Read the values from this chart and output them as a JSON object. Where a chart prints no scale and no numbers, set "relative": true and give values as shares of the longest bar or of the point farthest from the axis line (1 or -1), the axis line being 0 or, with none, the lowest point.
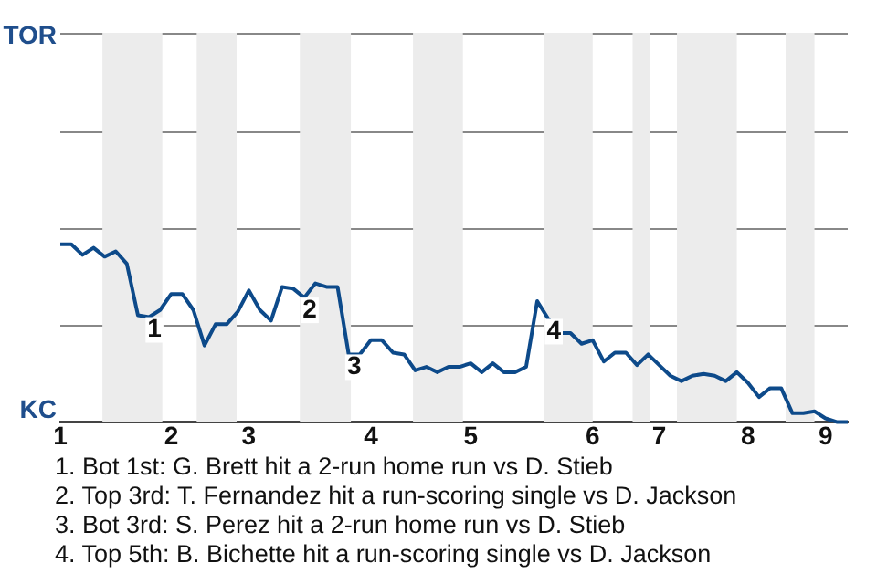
{
  "chart_data": {
    "type": "line",
    "color": "#0d4a8a",
    "marker": "none",
    "line_style": "solid",
    "legend": false,
    "ref_lines": [
      {
        "axis": "y",
        "value": 0.55,
        "color": "#888888"
      },
      {
        "axis": "y",
        "value": 1.09,
        "color": "#888888"
      },
      {
        "axis": "y",
        "value": 1.64,
        "color": "#888888"
      },
      {
        "axis": "y",
        "value": 2.19,
        "color": "#888888"
      }
    ],
    "categories": [
      "1",
      null,
      null,
      null,
      null,
      null,
      null,
      null,
      null,
      null,
      "2",
      null,
      null,
      null,
      null,
      null,
      null,
      "3",
      null,
      null,
      null,
      null,
      null,
      null,
      null,
      null,
      null,
      null,
      "4",
      null,
      null,
      null,
      null,
      null,
      null,
      null,
      null,
      "5",
      null,
      null,
      null,
      null,
      null,
      null,
      null,
      null,
      null,
      null,
      "6",
      null,
      null,
      null,
      null,
      null,
      "7",
      null,
      null,
      null,
      null,
      null,
      null,
      null,
      "8",
      null,
      null,
      null,
      null,
      null,
      null,
      "9",
      null,
      null
    ],
    "relative": true,
    "values": [
      1,
      1,
      0.94,
      0.98,
      0.93,
      0.96,
      0.89,
      0.6,
      0.59,
      0.63,
      0.72,
      0.72,
      0.63,
      0.43,
      0.55,
      0.55,
      0.62,
      0.74,
      0.63,
      0.57,
      0.76,
      0.75,
      0.7,
      0.78,
      0.76,
      0.76,
      0.38,
      0.38,
      0.46,
      0.46,
      0.39,
      0.38,
      0.29,
      0.31,
      0.28,
      0.31,
      0.31,
      0.33,
      0.28,
      0.33,
      0.28,
      0.28,
      0.31,
      0.68,
      0.58,
      0.5,
      0.5,
      0.44,
      0.46,
      0.34,
      0.39,
      0.39,
      0.32,
      0.38,
      0.32,
      0.26,
      0.23,
      0.26,
      0.27,
      0.26,
      0.23,
      0.28,
      0.22,
      0.14,
      0.19,
      0.19,
      0.05,
      0.05,
      0.06,
      0.02,
      0,
      0
    ],
    "annotations": [
      {
        "text": "TOR"
      },
      {
        "text": "KC"
      },
      {
        "text": "1",
        "y": 0.59
      },
      {
        "text": "2",
        "y": 0.7
      },
      {
        "text": "3",
        "y": 0.38
      },
      {
        "text": "4",
        "y": 0.58
      },
      "1. Bot 1st: G. Brett hit a 2-run home run vs D. Stieb",
      "2. Top 3rd: T. Fernandez hit a run-scoring single vs D. Jackson",
      "3. Bot 3rd: S. Perez hit a 2-run home run vs D. Stieb",
      "4. Top 5th: B. Bichette hit a run-scoring single vs D. Jackson"
    ]
  }
}
